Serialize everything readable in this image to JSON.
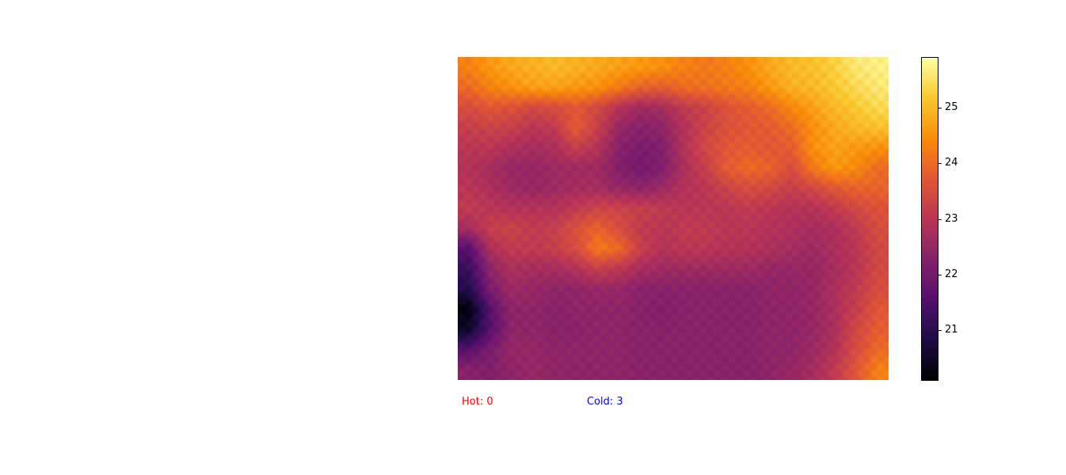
{
  "chart_data": {
    "type": "heatmap",
    "colormap": "inferno",
    "grid": false,
    "colorbar": {
      "position": "right",
      "range": [
        20.1,
        25.9
      ],
      "ticks": [
        21,
        22,
        23,
        24,
        25
      ],
      "tick_labels": [
        "21",
        "22",
        "23",
        "24",
        "25"
      ]
    },
    "rows": 16,
    "cols": 20,
    "values": [
      [
        24.3,
        24.6,
        24.8,
        24.9,
        25.0,
        24.9,
        24.8,
        24.7,
        24.6,
        24.5,
        24.3,
        24.2,
        24.3,
        24.5,
        24.8,
        25.0,
        25.1,
        25.3,
        25.6,
        25.7
      ],
      [
        24.0,
        24.3,
        24.5,
        24.7,
        24.7,
        24.6,
        24.5,
        24.2,
        23.9,
        23.8,
        24.0,
        24.1,
        24.2,
        24.3,
        24.6,
        24.9,
        25.0,
        25.2,
        25.4,
        25.6
      ],
      [
        23.5,
        23.7,
        23.6,
        23.4,
        23.5,
        23.7,
        23.4,
        22.9,
        22.6,
        22.7,
        23.1,
        23.3,
        23.6,
        23.8,
        24.0,
        24.4,
        24.7,
        25.0,
        25.2,
        25.4
      ],
      [
        23.2,
        23.3,
        23.2,
        23.0,
        23.1,
        23.8,
        23.2,
        22.5,
        22.3,
        22.4,
        22.9,
        23.3,
        23.6,
        23.7,
        23.8,
        24.0,
        24.5,
        24.8,
        25.0,
        25.1
      ],
      [
        23.0,
        23.0,
        22.8,
        22.7,
        22.8,
        23.2,
        22.9,
        22.3,
        22.1,
        22.2,
        22.9,
        23.4,
        23.7,
        23.8,
        23.7,
        23.8,
        24.5,
        24.7,
        24.6,
        24.5
      ],
      [
        22.9,
        22.7,
        22.5,
        22.5,
        22.6,
        22.6,
        22.6,
        22.2,
        22.0,
        22.2,
        22.8,
        23.2,
        23.8,
        24.0,
        23.9,
        23.5,
        24.2,
        24.6,
        24.4,
        24.0
      ],
      [
        23.0,
        22.8,
        22.6,
        22.5,
        22.6,
        22.7,
        22.7,
        22.5,
        22.4,
        22.6,
        22.9,
        23.0,
        23.3,
        23.5,
        23.4,
        23.2,
        23.4,
        23.7,
        23.9,
        23.9
      ],
      [
        23.1,
        23.0,
        22.9,
        22.9,
        22.9,
        23.1,
        23.3,
        23.3,
        23.2,
        23.1,
        23.0,
        23.0,
        23.0,
        23.1,
        23.0,
        22.9,
        22.9,
        23.1,
        23.4,
        23.6
      ],
      [
        22.7,
        23.2,
        23.3,
        23.1,
        23.2,
        23.6,
        23.9,
        23.5,
        23.1,
        23.0,
        23.1,
        23.1,
        23.0,
        23.0,
        22.9,
        22.8,
        22.7,
        22.8,
        23.1,
        23.5
      ],
      [
        21.6,
        22.8,
        23.1,
        23.1,
        23.2,
        23.5,
        24.2,
        24.0,
        23.2,
        22.9,
        23.0,
        23.0,
        22.9,
        22.9,
        22.8,
        22.7,
        22.6,
        22.8,
        23.0,
        23.4
      ],
      [
        21.2,
        22.4,
        22.8,
        22.7,
        22.7,
        22.9,
        23.2,
        23.0,
        22.7,
        22.6,
        22.6,
        22.6,
        22.6,
        22.6,
        22.5,
        22.5,
        22.5,
        22.7,
        23.0,
        23.4
      ],
      [
        20.9,
        22.1,
        22.6,
        22.5,
        22.4,
        22.4,
        22.5,
        22.5,
        22.3,
        22.3,
        22.3,
        22.3,
        22.3,
        22.3,
        22.4,
        22.4,
        22.5,
        22.8,
        23.1,
        23.5
      ],
      [
        20.2,
        21.6,
        22.4,
        22.4,
        22.3,
        22.4,
        22.4,
        22.4,
        22.3,
        22.2,
        22.3,
        22.3,
        22.3,
        22.3,
        22.4,
        22.4,
        22.5,
        22.8,
        23.2,
        23.7
      ],
      [
        20.5,
        21.6,
        22.4,
        22.4,
        22.3,
        22.3,
        22.4,
        22.4,
        22.3,
        22.3,
        22.3,
        22.3,
        22.3,
        22.3,
        22.4,
        22.4,
        22.5,
        22.8,
        23.4,
        23.8
      ],
      [
        21.6,
        22.1,
        22.5,
        22.5,
        22.4,
        22.4,
        22.4,
        22.4,
        22.3,
        22.3,
        22.3,
        22.3,
        22.3,
        22.3,
        22.4,
        22.4,
        22.6,
        22.9,
        23.5,
        24.0
      ],
      [
        22.3,
        22.2,
        22.4,
        22.5,
        22.4,
        22.4,
        22.4,
        22.4,
        22.3,
        22.3,
        22.3,
        22.3,
        22.3,
        22.3,
        22.4,
        22.5,
        22.7,
        23.1,
        23.7,
        24.3
      ]
    ]
  },
  "status": {
    "hot_label": "Hot: 0",
    "cold_label": "Cold: 3",
    "hot_color": "#ff0000",
    "cold_color": "#0000ff"
  }
}
